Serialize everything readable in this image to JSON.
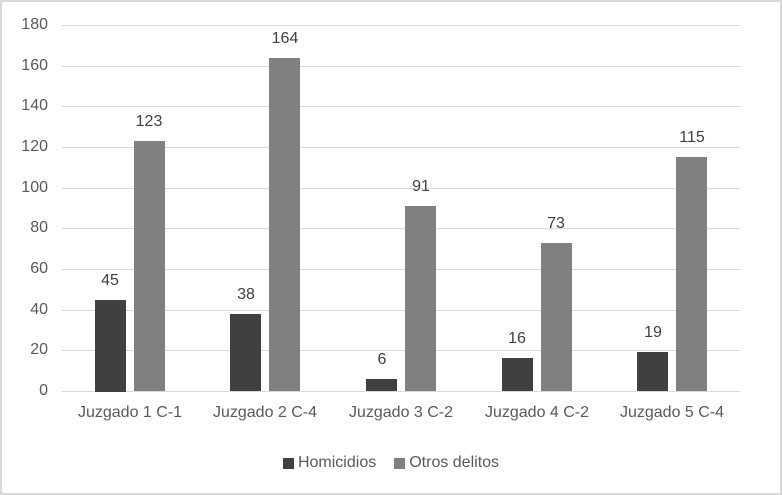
{
  "chart_data": {
    "type": "bar",
    "title": "",
    "xlabel": "",
    "ylabel": "",
    "ylim": [
      0,
      180
    ],
    "yticks": [
      0,
      20,
      40,
      60,
      80,
      100,
      120,
      140,
      160,
      180
    ],
    "grid": true,
    "legend_position": "bottom",
    "categories": [
      "Juzgado 1 C-1",
      "Juzgado 2 C-4",
      "Juzgado 3 C-2",
      "Juzgado 4 C-2",
      "Juzgado 5 C-4"
    ],
    "series": [
      {
        "name": "Homicidios",
        "color": "#404040",
        "values": [
          45,
          38,
          6,
          16,
          19
        ]
      },
      {
        "name": "Otros delitos",
        "color": "#808080",
        "values": [
          123,
          164,
          91,
          73,
          115
        ]
      }
    ],
    "data_labels": true
  }
}
